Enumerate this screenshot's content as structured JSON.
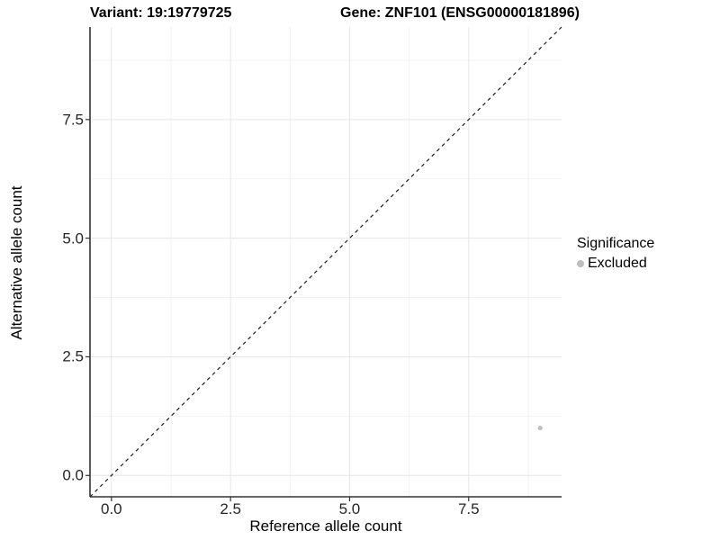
{
  "chart_data": {
    "type": "scatter",
    "titles": {
      "left": "Variant: 19:19779725",
      "right": "Gene: ZNF101 (ENSG00000181896)"
    },
    "xlabel": "Reference allele count",
    "ylabel": "Alternative allele count",
    "xlim": [
      -0.45,
      9.45
    ],
    "ylim": [
      -0.45,
      9.45
    ],
    "xticks": [
      0,
      2.5,
      5,
      7.5
    ],
    "yticks": [
      0,
      2.5,
      5,
      7.5
    ],
    "xtick_labels": [
      "0.0",
      "2.5",
      "5.0",
      "7.5"
    ],
    "ytick_labels": [
      "0.0",
      "2.5",
      "5.0",
      "7.5"
    ],
    "minor_ticks": [
      1.25,
      3.75,
      6.25,
      8.75
    ],
    "grid": {
      "show": true,
      "major_color": "#e6e6e6",
      "minor_color": "#f2f2f2"
    },
    "identity_line": {
      "style": "dashed",
      "color": "#1a1a1a",
      "x1": -0.45,
      "y1": -0.45,
      "x2": 9.45,
      "y2": 9.45
    },
    "series": [
      {
        "name": "Excluded",
        "color": "#bebebe",
        "points": [
          {
            "x": 9,
            "y": 1
          }
        ]
      }
    ],
    "legend": {
      "title": "Significance",
      "position": "right",
      "entries": [
        {
          "label": "Excluded",
          "color": "#bebebe",
          "marker": "circle"
        }
      ]
    },
    "axis_color": "#333333",
    "point_radius": 2.6
  }
}
